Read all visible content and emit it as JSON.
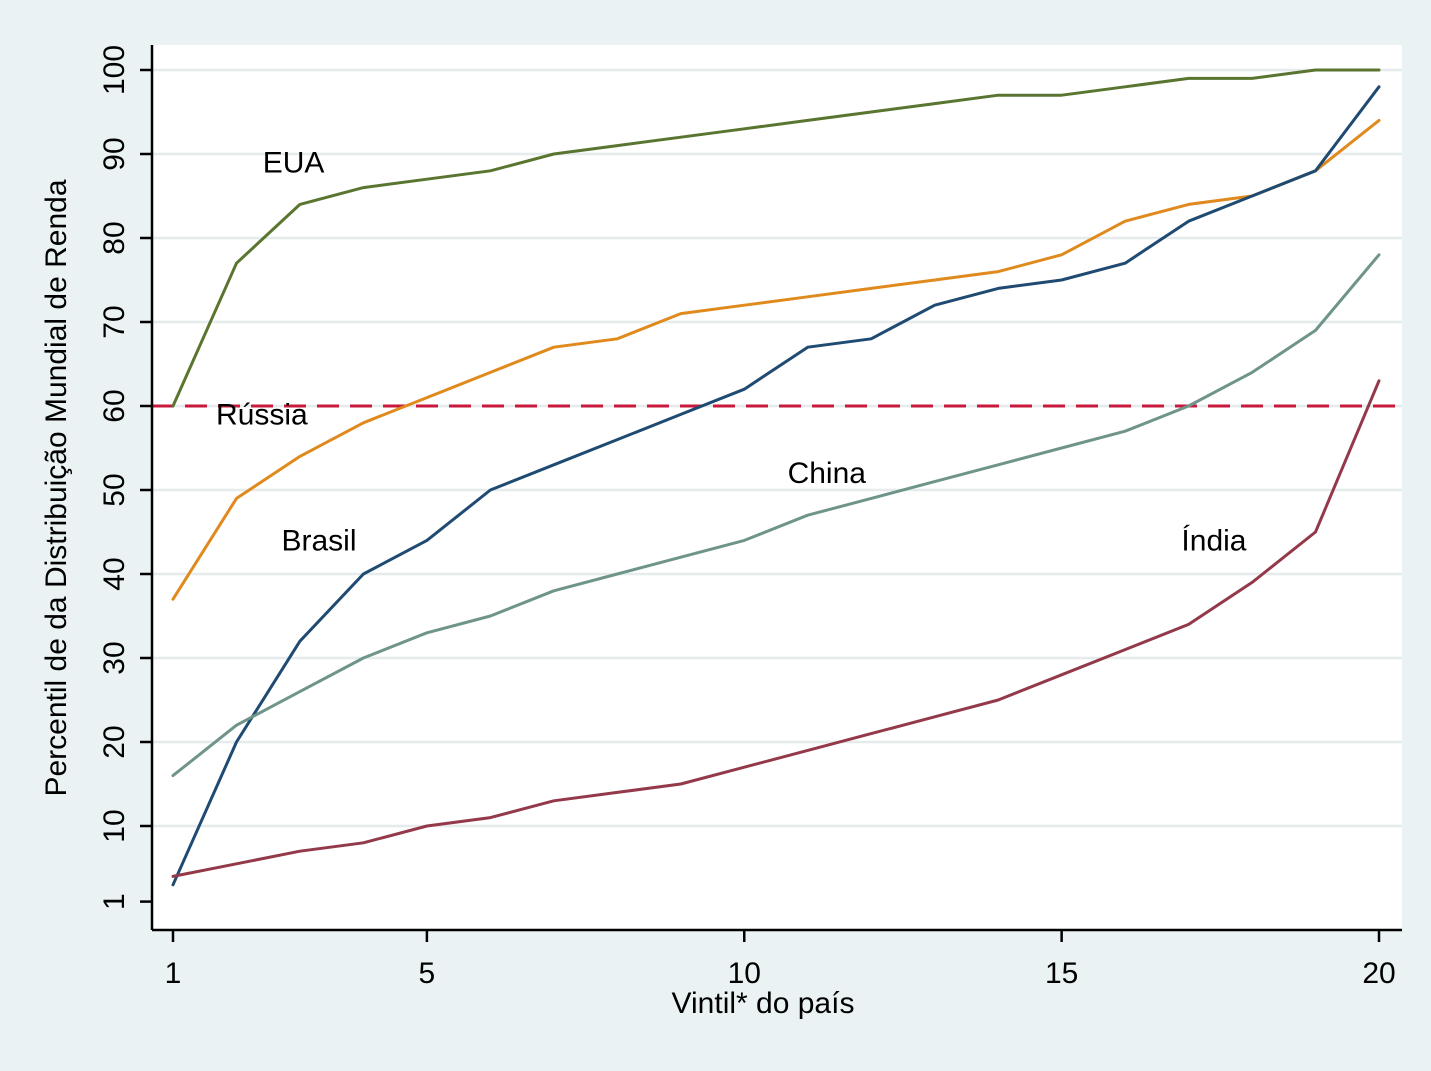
{
  "chart_data": {
    "type": "line",
    "title": "",
    "xlabel": "Vintil* do país",
    "ylabel": "Percentil de da Distribuição Mundial de Renda",
    "xlim": [
      1,
      20
    ],
    "ylim": [
      1,
      100
    ],
    "xticks": [
      1,
      5,
      10,
      15,
      20
    ],
    "yticks": [
      1,
      10,
      20,
      30,
      40,
      50,
      60,
      70,
      80,
      90,
      100
    ],
    "grid": "horizontal",
    "legend": "none",
    "background_color": "#eaf2f3",
    "plot_background_color": "#ffffff",
    "x": [
      1,
      2,
      3,
      4,
      5,
      6,
      7,
      8,
      9,
      10,
      11,
      12,
      13,
      14,
      15,
      16,
      17,
      18,
      19,
      20
    ],
    "series": [
      {
        "name": "EUA",
        "color": "#5a7530",
        "values": [
          60,
          77,
          84,
          86,
          87,
          88,
          90,
          91,
          92,
          93,
          94,
          95,
          96,
          97,
          97,
          98,
          99,
          99,
          100,
          100
        ]
      },
      {
        "name": "Rússia",
        "color": "#e08a1e",
        "values": [
          37,
          49,
          54,
          58,
          61,
          64,
          67,
          68,
          71,
          72,
          73,
          74,
          75,
          76,
          78,
          82,
          84,
          85,
          88,
          94
        ]
      },
      {
        "name": "Brasil",
        "color": "#1f4a72",
        "values": [
          3,
          20,
          32,
          40,
          44,
          50,
          53,
          56,
          59,
          62,
          67,
          68,
          72,
          74,
          75,
          77,
          82,
          85,
          88,
          98
        ]
      },
      {
        "name": "China",
        "color": "#6f948a",
        "values": [
          16,
          22,
          26,
          30,
          33,
          35,
          38,
          40,
          42,
          44,
          47,
          49,
          51,
          53,
          55,
          57,
          60,
          64,
          69,
          78
        ]
      },
      {
        "name": "Índia",
        "color": "#93394a",
        "values": [
          4,
          5.5,
          7,
          8,
          10,
          11,
          13,
          14,
          15,
          17,
          19,
          21,
          23,
          25,
          28,
          31,
          34,
          39,
          45,
          63
        ]
      }
    ],
    "reference_line": {
      "y": 60,
      "color": "#c8183c",
      "style": "dashed"
    },
    "annotations": [
      {
        "text": "EUA",
        "x": 2.9,
        "y": 89
      },
      {
        "text": "Rússia",
        "x": 2.4,
        "y": 59
      },
      {
        "text": "Brasil",
        "x": 3.3,
        "y": 44
      },
      {
        "text": "China",
        "x": 11.3,
        "y": 52
      },
      {
        "text": "Índia",
        "x": 17.4,
        "y": 44
      }
    ]
  }
}
